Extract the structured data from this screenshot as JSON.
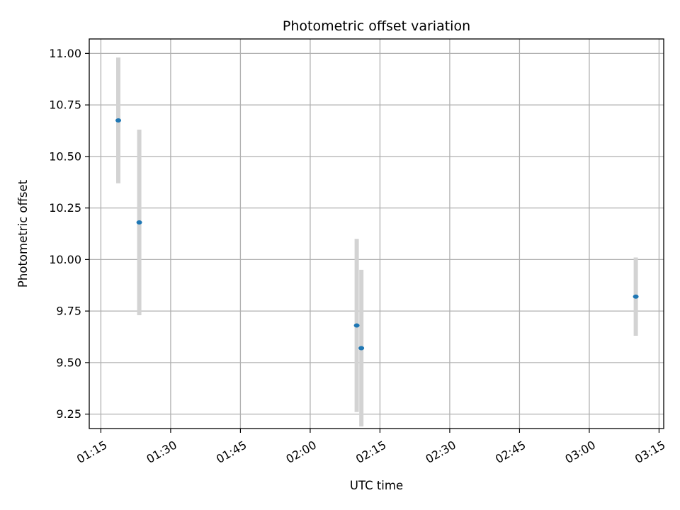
{
  "chart_data": {
    "type": "scatter",
    "title": "Photometric offset variation",
    "xlabel": "UTC time",
    "ylabel": "Photometric offset",
    "x_type": "time",
    "xlim": [
      "01:12:30",
      "03:16:00"
    ],
    "ylim": [
      9.18,
      11.07
    ],
    "grid": true,
    "x_ticks": [
      "01:15",
      "01:30",
      "01:45",
      "02:00",
      "02:15",
      "02:30",
      "02:45",
      "03:00",
      "03:15"
    ],
    "y_ticks": [
      "9.25",
      "9.50",
      "9.75",
      "10.00",
      "10.25",
      "10.50",
      "10.75",
      "11.00"
    ],
    "colors": {
      "point": "#1f77b4",
      "errorbar": "#d3d3d3",
      "grid": "#b0b0b0"
    },
    "points": [
      {
        "x": "01:18:45",
        "y": 10.675,
        "yerr": 0.305
      },
      {
        "x": "01:23:15",
        "y": 10.18,
        "yerr": 0.45
      },
      {
        "x": "02:10:00",
        "y": 9.68,
        "yerr": 0.42
      },
      {
        "x": "02:11:00",
        "y": 9.57,
        "yerr": 0.38
      },
      {
        "x": "03:10:00",
        "y": 9.82,
        "yerr": 0.19
      }
    ]
  }
}
